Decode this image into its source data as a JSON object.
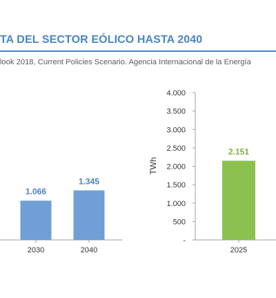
{
  "header": {
    "title": "TA DEL SECTOR EÓLICO HASTA 2040",
    "source": "look 2018, Current Policies Scenario. Agencia Internacional de la Energía"
  },
  "colors": {
    "accent": "#4a84c4",
    "left_bars": "#6f9fd6",
    "right_bars": "#8cc152",
    "right_label": "#7cb342"
  },
  "chart_data": [
    {
      "type": "bar",
      "categories": [
        "2030",
        "2040"
      ],
      "values": [
        1066,
        1345
      ],
      "data_labels": [
        "1.066",
        "1.345"
      ]
    },
    {
      "type": "bar",
      "categories": [
        "2025"
      ],
      "values": [
        2151
      ],
      "data_labels": [
        "2.151"
      ],
      "ylabel": "TWh",
      "ylim": [
        0,
        4000
      ],
      "yticks": [
        "-",
        "500",
        "1.000",
        "1.500",
        "2.000",
        "2.500",
        "3.000",
        "3.500",
        "4.000"
      ]
    }
  ]
}
